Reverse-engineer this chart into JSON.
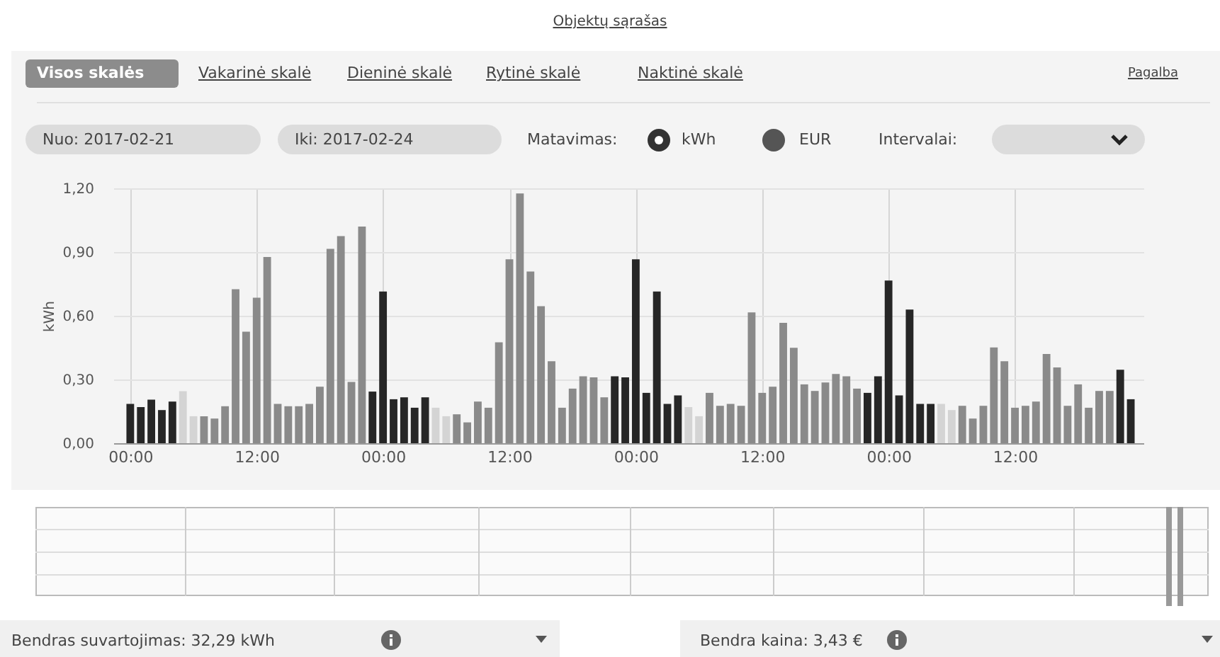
{
  "chart_data": {
    "type": "bar",
    "title": "Objektų sąrašas",
    "ylabel": "kWh",
    "x": [
      "2017-02-21T00:00",
      "2017-02-21T01:00",
      "2017-02-21T02:00",
      "2017-02-21T03:00",
      "2017-02-21T04:00",
      "2017-02-21T05:00",
      "2017-02-21T06:00",
      "2017-02-21T07:00",
      "2017-02-21T08:00",
      "2017-02-21T09:00",
      "2017-02-21T10:00",
      "2017-02-21T11:00",
      "2017-02-21T12:00",
      "2017-02-21T13:00",
      "2017-02-21T14:00",
      "2017-02-21T15:00",
      "2017-02-21T16:00",
      "2017-02-21T17:00",
      "2017-02-21T18:00",
      "2017-02-21T19:00",
      "2017-02-21T20:00",
      "2017-02-21T21:00",
      "2017-02-21T22:00",
      "2017-02-21T23:00",
      "2017-02-22T00:00",
      "2017-02-22T01:00",
      "2017-02-22T02:00",
      "2017-02-22T03:00",
      "2017-02-22T04:00",
      "2017-02-22T05:00",
      "2017-02-22T06:00",
      "2017-02-22T07:00",
      "2017-02-22T08:00",
      "2017-02-22T09:00",
      "2017-02-22T10:00",
      "2017-02-22T11:00",
      "2017-02-22T12:00",
      "2017-02-22T13:00",
      "2017-02-22T14:00",
      "2017-02-22T15:00",
      "2017-02-22T16:00",
      "2017-02-22T17:00",
      "2017-02-22T18:00",
      "2017-02-22T19:00",
      "2017-02-22T20:00",
      "2017-02-22T21:00",
      "2017-02-22T22:00",
      "2017-02-22T23:00",
      "2017-02-23T00:00",
      "2017-02-23T01:00",
      "2017-02-23T02:00",
      "2017-02-23T03:00",
      "2017-02-23T04:00",
      "2017-02-23T05:00",
      "2017-02-23T06:00",
      "2017-02-23T07:00",
      "2017-02-23T08:00",
      "2017-02-23T09:00",
      "2017-02-23T10:00",
      "2017-02-23T11:00",
      "2017-02-23T12:00",
      "2017-02-23T13:00",
      "2017-02-23T14:00",
      "2017-02-23T15:00",
      "2017-02-23T16:00",
      "2017-02-23T17:00",
      "2017-02-23T18:00",
      "2017-02-23T19:00",
      "2017-02-23T20:00",
      "2017-02-23T21:00",
      "2017-02-23T22:00",
      "2017-02-23T23:00",
      "2017-02-24T00:00",
      "2017-02-24T01:00",
      "2017-02-24T02:00",
      "2017-02-24T03:00",
      "2017-02-24T04:00",
      "2017-02-24T05:00",
      "2017-02-24T06:00",
      "2017-02-24T07:00",
      "2017-02-24T08:00",
      "2017-02-24T09:00",
      "2017-02-24T10:00",
      "2017-02-24T11:00",
      "2017-02-24T12:00",
      "2017-02-24T13:00",
      "2017-02-24T14:00",
      "2017-02-24T15:00",
      "2017-02-24T16:00",
      "2017-02-24T17:00",
      "2017-02-24T18:00",
      "2017-02-24T19:00",
      "2017-02-24T20:00",
      "2017-02-24T21:00",
      "2017-02-24T22:00",
      "2017-02-24T23:00"
    ],
    "values": [
      0.185,
      0.17,
      0.205,
      0.156,
      0.196,
      0.245,
      0.127,
      0.127,
      0.116,
      0.174,
      0.725,
      0.525,
      0.685,
      0.877,
      0.185,
      0.174,
      0.174,
      0.185,
      0.266,
      0.915,
      0.975,
      0.288,
      1.02,
      0.243,
      0.714,
      0.207,
      0.216,
      0.167,
      0.216,
      0.167,
      0.127,
      0.136,
      0.098,
      0.196,
      0.167,
      0.475,
      0.866,
      1.176,
      0.808,
      0.645,
      0.386,
      0.167,
      0.257,
      0.315,
      0.31,
      0.216,
      0.315,
      0.31,
      0.866,
      0.237,
      0.714,
      0.185,
      0.225,
      0.17,
      0.127,
      0.237,
      0.176,
      0.185,
      0.176,
      0.616,
      0.237,
      0.266,
      0.567,
      0.449,
      0.277,
      0.246,
      0.286,
      0.326,
      0.315,
      0.257,
      0.237,
      0.315,
      0.766,
      0.225,
      0.629,
      0.185,
      0.185,
      0.185,
      0.156,
      0.176,
      0.116,
      0.176,
      0.451,
      0.386,
      0.167,
      0.176,
      0.196,
      0.42,
      0.357,
      0.176,
      0.277,
      0.167,
      0.246,
      0.246,
      0.346,
      0.207
    ],
    "colors": [
      "#262626",
      "#262626",
      "#262626",
      "#262626",
      "#262626",
      "#d4d4d4",
      "#d4d4d4",
      "#8a8a8a",
      "#8a8a8a",
      "#8a8a8a",
      "#8a8a8a",
      "#8a8a8a",
      "#8a8a8a",
      "#8a8a8a",
      "#8a8a8a",
      "#8a8a8a",
      "#8a8a8a",
      "#8a8a8a",
      "#8a8a8a",
      "#8a8a8a",
      "#8a8a8a",
      "#8a8a8a",
      "#8a8a8a",
      "#262626",
      "#262626",
      "#262626",
      "#262626",
      "#262626",
      "#262626",
      "#d4d4d4",
      "#d4d4d4",
      "#8a8a8a",
      "#8a8a8a",
      "#8a8a8a",
      "#8a8a8a",
      "#8a8a8a",
      "#8a8a8a",
      "#8a8a8a",
      "#8a8a8a",
      "#8a8a8a",
      "#8a8a8a",
      "#8a8a8a",
      "#8a8a8a",
      "#8a8a8a",
      "#8a8a8a",
      "#8a8a8a",
      "#262626",
      "#262626",
      "#262626",
      "#262626",
      "#262626",
      "#262626",
      "#262626",
      "#d4d4d4",
      "#d4d4d4",
      "#8a8a8a",
      "#8a8a8a",
      "#8a8a8a",
      "#8a8a8a",
      "#8a8a8a",
      "#8a8a8a",
      "#8a8a8a",
      "#8a8a8a",
      "#8a8a8a",
      "#8a8a8a",
      "#8a8a8a",
      "#8a8a8a",
      "#8a8a8a",
      "#8a8a8a",
      "#8a8a8a",
      "#262626",
      "#262626",
      "#262626",
      "#262626",
      "#262626",
      "#262626",
      "#262626",
      "#d4d4d4",
      "#d4d4d4",
      "#8a8a8a",
      "#8a8a8a",
      "#8a8a8a",
      "#8a8a8a",
      "#8a8a8a",
      "#8a8a8a",
      "#8a8a8a",
      "#8a8a8a",
      "#8a8a8a",
      "#8a8a8a",
      "#8a8a8a",
      "#8a8a8a",
      "#8a8a8a",
      "#8a8a8a",
      "#8a8a8a",
      "#262626",
      "#262626"
    ],
    "xlim": [
      "2017-02-20T23:04",
      "2017-02-24T23:32"
    ],
    "xticks": [
      {
        "value": "2017-02-21T00:00",
        "label": "00:00"
      },
      {
        "value": "2017-02-21T12:00",
        "label": "12:00"
      },
      {
        "value": "2017-02-22T00:00",
        "label": "00:00"
      },
      {
        "value": "2017-02-22T12:00",
        "label": "12:00"
      },
      {
        "value": "2017-02-23T00:00",
        "label": "00:00"
      },
      {
        "value": "2017-02-23T12:00",
        "label": "12:00"
      },
      {
        "value": "2017-02-24T00:00",
        "label": "00:00"
      },
      {
        "value": "2017-02-24T12:00",
        "label": "12:00"
      }
    ],
    "ylim": [
      0,
      1.2
    ],
    "yticks": [
      {
        "value": 0,
        "label": "0,00"
      },
      {
        "value": 0.3,
        "label": "0,30"
      },
      {
        "value": 0.6,
        "label": "0,60"
      },
      {
        "value": 0.9,
        "label": "0,90"
      },
      {
        "value": 1.2,
        "label": "1,20"
      }
    ],
    "grid": true,
    "annotations": [
      "Visos skalės",
      "Vakarinė skalė",
      "Dieninė skalė",
      "Rytinė skalė",
      "Naktinė skalė",
      "Pagalba",
      "Nuo:  2017-02-21",
      "Iki:  2017-02-24",
      "Matavimas:",
      "kWh",
      "EUR",
      "Intervalai:",
      "Bendras suvartojimas: 32,29 kWh",
      "Bendra kaina: 3,43 €"
    ]
  }
}
